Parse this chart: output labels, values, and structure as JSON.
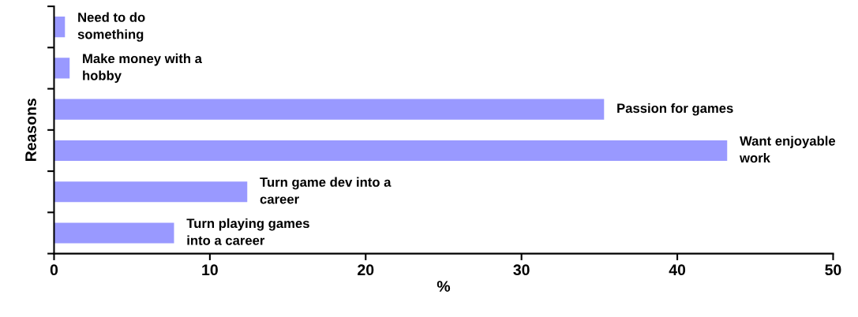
{
  "chart_data": {
    "type": "bar",
    "orientation": "horizontal",
    "xlabel": "%",
    "ylabel": "Reasons",
    "categories": [
      "Need to do\nsomething",
      "Make money with a\nhobby",
      "Passion for games",
      "Want enjoyable\nwork",
      "Turn game dev into a\ncareer",
      "Turn playing games\ninto a career"
    ],
    "values": [
      0.7,
      1.0,
      35.3,
      43.2,
      12.4,
      7.7
    ],
    "color": "#9999ff",
    "xlim": [
      0,
      50
    ],
    "xticks": [
      0,
      10,
      20,
      30,
      40,
      50
    ],
    "grid": false,
    "legend": false
  }
}
